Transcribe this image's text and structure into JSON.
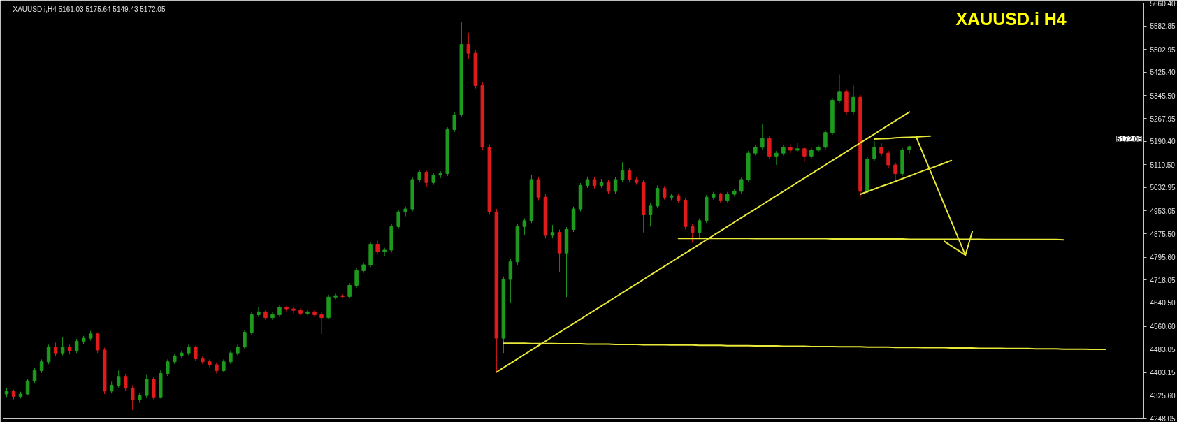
{
  "chart_data": {
    "type": "candlestick",
    "title": "XAUUSD.i      H4",
    "annotations": [
      "XAUUSD.i,H4  5161.03 5175.64 5149.43 5172.05",
      "5172.05"
    ],
    "categories": [
      null,
      null,
      null,
      null,
      null,
      null,
      null,
      null,
      null,
      null,
      null,
      null,
      null,
      null,
      null,
      null,
      null,
      null,
      null,
      null,
      null,
      null,
      null,
      null,
      null,
      null,
      null,
      null,
      null,
      null,
      null,
      null,
      null,
      null,
      null,
      null,
      null,
      null,
      null,
      null,
      null,
      null,
      null,
      null,
      null,
      null,
      null,
      null,
      null,
      null,
      null,
      null,
      null,
      null,
      null,
      null,
      null,
      null,
      null,
      null,
      null,
      null,
      null,
      null,
      null,
      null,
      null,
      null,
      null,
      null,
      null,
      null,
      null,
      null,
      null,
      null,
      null,
      null,
      null,
      null,
      null,
      null,
      null,
      null,
      null,
      null,
      null,
      null,
      null,
      null,
      null,
      null,
      null,
      null,
      null,
      null,
      null,
      null,
      null,
      null,
      null,
      null,
      null,
      null,
      null,
      null,
      null,
      null,
      null,
      null,
      null,
      null,
      null,
      null,
      null,
      null,
      null,
      null,
      null,
      null,
      null,
      null,
      null,
      null,
      null,
      null,
      null,
      null,
      null,
      null,
      null,
      null,
      null,
      null,
      null,
      null,
      null,
      null,
      null,
      null,
      null,
      null,
      null,
      null,
      null,
      null,
      null,
      null,
      null,
      null,
      null,
      null,
      null,
      null,
      null,
      null,
      null,
      null,
      null,
      null,
      null,
      null,
      null
    ],
    "ohlc": [
      [
        4330,
        4350,
        4320,
        4339
      ],
      [
        4339,
        4345,
        4312,
        4322
      ],
      [
        4322,
        4338,
        4315,
        4330
      ],
      [
        4330,
        4382,
        4325,
        4375
      ],
      [
        4375,
        4418,
        4368,
        4410
      ],
      [
        4410,
        4448,
        4402,
        4440
      ],
      [
        4440,
        4498,
        4432,
        4490
      ],
      [
        4490,
        4505,
        4460,
        4470
      ],
      [
        4470,
        4525,
        4462,
        4490
      ],
      [
        4490,
        4498,
        4465,
        4478
      ],
      [
        4478,
        4518,
        4470,
        4510
      ],
      [
        4510,
        4528,
        4500,
        4520
      ],
      [
        4520,
        4545,
        4512,
        4535
      ],
      [
        4535,
        4540,
        4470,
        4480
      ],
      [
        4480,
        4488,
        4330,
        4340
      ],
      [
        4340,
        4372,
        4332,
        4360
      ],
      [
        4360,
        4410,
        4352,
        4390
      ],
      [
        4390,
        4398,
        4340,
        4350
      ],
      [
        4350,
        4360,
        4275,
        4310
      ],
      [
        4310,
        4335,
        4300,
        4325
      ],
      [
        4325,
        4395,
        4318,
        4380
      ],
      [
        4380,
        4388,
        4312,
        4320
      ],
      [
        4320,
        4410,
        4315,
        4400
      ],
      [
        4400,
        4448,
        4392,
        4440
      ],
      [
        4440,
        4468,
        4432,
        4460
      ],
      [
        4460,
        4478,
        4452,
        4470
      ],
      [
        4470,
        4498,
        4462,
        4490
      ],
      [
        4490,
        4495,
        4442,
        4450
      ],
      [
        4450,
        4460,
        4432,
        4440
      ],
      [
        4440,
        4448,
        4422,
        4430
      ],
      [
        4430,
        4438,
        4400,
        4410
      ],
      [
        4410,
        4448,
        4405,
        4440
      ],
      [
        4440,
        4478,
        4432,
        4470
      ],
      [
        4470,
        4498,
        4462,
        4490
      ],
      [
        4490,
        4548,
        4485,
        4540
      ],
      [
        4540,
        4608,
        4532,
        4600
      ],
      [
        4600,
        4625,
        4592,
        4610
      ],
      [
        4610,
        4618,
        4582,
        4590
      ],
      [
        4590,
        4610,
        4582,
        4600
      ],
      [
        4600,
        4632,
        4592,
        4625
      ],
      [
        4625,
        4630,
        4610,
        4620
      ],
      [
        4620,
        4628,
        4605,
        4615
      ],
      [
        4615,
        4622,
        4598,
        4605
      ],
      [
        4605,
        4618,
        4598,
        4610
      ],
      [
        4610,
        4615,
        4592,
        4600
      ],
      [
        4600,
        4608,
        4535,
        4590
      ],
      [
        4590,
        4668,
        4585,
        4660
      ],
      [
        4660,
        4672,
        4652,
        4665
      ],
      [
        4665,
        4670,
        4655,
        4662
      ],
      [
        4662,
        4708,
        4655,
        4700
      ],
      [
        4700,
        4758,
        4692,
        4750
      ],
      [
        4750,
        4778,
        4742,
        4770
      ],
      [
        4770,
        4848,
        4762,
        4840
      ],
      [
        4840,
        4852,
        4805,
        4815
      ],
      [
        4815,
        4828,
        4800,
        4820
      ],
      [
        4820,
        4908,
        4812,
        4900
      ],
      [
        4900,
        4958,
        4892,
        4950
      ],
      [
        4950,
        4968,
        4935,
        4960
      ],
      [
        4960,
        5068,
        4952,
        5060
      ],
      [
        5060,
        5092,
        5050,
        5085
      ],
      [
        5085,
        5090,
        5035,
        5050
      ],
      [
        5050,
        5082,
        5042,
        5075
      ],
      [
        5075,
        5088,
        5065,
        5080
      ],
      [
        5080,
        5238,
        5072,
        5230
      ],
      [
        5230,
        5288,
        5222,
        5280
      ],
      [
        5280,
        5596,
        5272,
        5520
      ],
      [
        5520,
        5560,
        5470,
        5490
      ],
      [
        5490,
        5500,
        5370,
        5380
      ],
      [
        5380,
        5392,
        5160,
        5170
      ],
      [
        5170,
        5180,
        4940,
        4950
      ],
      [
        4950,
        4960,
        4403,
        4520
      ],
      [
        4520,
        4730,
        4470,
        4720
      ],
      [
        4720,
        4790,
        4640,
        4780
      ],
      [
        4780,
        4908,
        4770,
        4900
      ],
      [
        4900,
        4928,
        4870,
        4920
      ],
      [
        4920,
        5075,
        4912,
        5060
      ],
      [
        5060,
        5070,
        4990,
        5000
      ],
      [
        5000,
        5010,
        4860,
        4870
      ],
      [
        4870,
        4905,
        4860,
        4880
      ],
      [
        4880,
        4890,
        4745,
        4810
      ],
      [
        4810,
        4898,
        4660,
        4890
      ],
      [
        4890,
        4968,
        4882,
        4960
      ],
      [
        4960,
        5048,
        4952,
        5040
      ],
      [
        5040,
        5070,
        5032,
        5060
      ],
      [
        5060,
        5068,
        5030,
        5040
      ],
      [
        5040,
        5062,
        5032,
        5050
      ],
      [
        5050,
        5058,
        5010,
        5020
      ],
      [
        5020,
        5068,
        5012,
        5060
      ],
      [
        5060,
        5119,
        5052,
        5090
      ],
      [
        5090,
        5098,
        5052,
        5060
      ],
      [
        5060,
        5070,
        5042,
        5050
      ],
      [
        5050,
        5058,
        4880,
        4940
      ],
      [
        4940,
        4980,
        4900,
        4970
      ],
      [
        4970,
        5040,
        4962,
        5030
      ],
      [
        5030,
        5038,
        4992,
        5000
      ],
      [
        5000,
        5012,
        4990,
        5005
      ],
      [
        5005,
        5012,
        4982,
        4990
      ],
      [
        4990,
        4998,
        4890,
        4900
      ],
      [
        4900,
        4910,
        4845,
        4880
      ],
      [
        4880,
        4928,
        4862,
        4920
      ],
      [
        4920,
        5008,
        4912,
        5000
      ],
      [
        5000,
        5018,
        4992,
        5010
      ],
      [
        5010,
        5015,
        4982,
        4990
      ],
      [
        4990,
        5018,
        4982,
        5010
      ],
      [
        5010,
        5028,
        5002,
        5020
      ],
      [
        5020,
        5068,
        5012,
        5060
      ],
      [
        5060,
        5158,
        5052,
        5150
      ],
      [
        5150,
        5178,
        5142,
        5170
      ],
      [
        5170,
        5248,
        5162,
        5200
      ],
      [
        5200,
        5208,
        5130,
        5140
      ],
      [
        5140,
        5158,
        5110,
        5150
      ],
      [
        5150,
        5178,
        5142,
        5170
      ],
      [
        5170,
        5180,
        5150,
        5160
      ],
      [
        5160,
        5185,
        5152,
        5165
      ],
      [
        5165,
        5170,
        5120,
        5140
      ],
      [
        5140,
        5168,
        5132,
        5160
      ],
      [
        5160,
        5178,
        5152,
        5170
      ],
      [
        5170,
        5228,
        5162,
        5220
      ],
      [
        5220,
        5338,
        5212,
        5330
      ],
      [
        5330,
        5418,
        5322,
        5360
      ],
      [
        5360,
        5368,
        5280,
        5290
      ],
      [
        5290,
        5380,
        5282,
        5340
      ],
      [
        5340,
        5348,
        5000,
        5020
      ],
      [
        5020,
        5138,
        5012,
        5130
      ],
      [
        5130,
        5190,
        5122,
        5170
      ],
      [
        5170,
        5185,
        5140,
        5150
      ],
      [
        5150,
        5158,
        5100,
        5110
      ],
      [
        5110,
        5118,
        5060,
        5080
      ],
      [
        5080,
        5168,
        5072,
        5161.03
      ],
      [
        5161.03,
        5175.64,
        5149.43,
        5172.05
      ],
      null,
      null,
      null,
      null,
      null,
      null,
      null,
      null,
      null,
      null,
      null,
      null,
      null,
      null,
      null,
      null,
      null,
      null,
      null,
      null,
      null,
      null,
      null,
      null,
      null,
      null,
      null,
      null,
      null,
      null,
      null,
      null,
      null
    ],
    "series": [
      {
        "type": "line",
        "color": "#e8e838",
        "values": [
          null,
          null,
          null,
          null,
          null,
          null,
          null,
          null,
          null,
          null,
          null,
          null,
          null,
          null,
          null,
          null,
          null,
          null,
          null,
          null,
          null,
          null,
          null,
          null,
          null,
          null,
          null,
          null,
          null,
          null,
          null,
          null,
          null,
          null,
          null,
          null,
          null,
          null,
          null,
          null,
          null,
          null,
          null,
          null,
          null,
          null,
          null,
          null,
          null,
          null,
          null,
          null,
          null,
          null,
          null,
          null,
          null,
          null,
          null,
          null,
          null,
          null,
          null,
          null,
          null,
          null,
          null,
          null,
          null,
          null,
          4405,
          4420,
          4435,
          4450,
          4465,
          4480,
          4495,
          4510,
          4525,
          4540,
          4555,
          4570,
          4585,
          4600,
          4615,
          4630,
          4645,
          4660,
          4675,
          4690,
          4705,
          4720,
          4735,
          4750,
          4765,
          4780,
          4795,
          4810,
          4825,
          4840,
          4855,
          4870,
          4885,
          4900,
          4915,
          4930,
          4945,
          4960,
          4975,
          4990,
          5005,
          5020,
          5035,
          5050,
          5065,
          5080,
          5095,
          5110,
          5125,
          5140,
          5155,
          5170,
          5185,
          5200,
          5215,
          5230,
          5245,
          5260,
          5275,
          5290,
          null,
          null,
          null,
          null,
          null,
          null,
          null,
          null,
          null,
          null,
          null,
          null,
          null,
          null,
          null,
          null,
          null,
          null,
          null,
          null,
          null,
          null,
          null,
          null,
          null,
          null,
          null,
          null,
          null,
          null,
          null,
          null,
          null
        ]
      },
      {
        "type": "line",
        "color": "#e8e838",
        "values": [
          null,
          null,
          null,
          null,
          null,
          null,
          null,
          null,
          null,
          null,
          null,
          null,
          null,
          null,
          null,
          null,
          null,
          null,
          null,
          null,
          null,
          null,
          null,
          null,
          null,
          null,
          null,
          null,
          null,
          null,
          null,
          null,
          null,
          null,
          null,
          null,
          null,
          null,
          null,
          null,
          null,
          null,
          null,
          null,
          null,
          null,
          null,
          null,
          null,
          null,
          null,
          null,
          null,
          null,
          null,
          null,
          null,
          null,
          null,
          null,
          null,
          null,
          null,
          null,
          null,
          null,
          null,
          null,
          null,
          null,
          null,
          4503,
          4503,
          4503,
          4503,
          4502,
          4502,
          4502,
          4502,
          4501,
          4501,
          4501,
          4501,
          4500,
          4500,
          4500,
          4500,
          4499,
          4499,
          4499,
          4499,
          4498,
          4498,
          4498,
          4498,
          4497,
          4497,
          4497,
          4497,
          4496,
          4496,
          4496,
          4496,
          4495,
          4495,
          4495,
          4495,
          4494,
          4494,
          4494,
          4494,
          4493,
          4493,
          4493,
          4493,
          4492,
          4492,
          4492,
          4492,
          4491,
          4491,
          4491,
          4491,
          4490,
          4490,
          4490,
          4490,
          4489,
          4489,
          4489,
          4489,
          4488,
          4488,
          4488,
          4488,
          4487,
          4487,
          4487,
          4487,
          4486,
          4486,
          4486,
          4486,
          4485,
          4485,
          4485,
          4485,
          4484,
          4484,
          4484,
          4484,
          4483,
          4483,
          4483,
          4483,
          4482,
          4482,
          4482,
          null,
          null,
          null,
          null,
          null
        ]
      },
      {
        "type": "line",
        "color": "#e8e838",
        "values": [
          null,
          null,
          null,
          null,
          null,
          null,
          null,
          null,
          null,
          null,
          null,
          null,
          null,
          null,
          null,
          null,
          null,
          null,
          null,
          null,
          null,
          null,
          null,
          null,
          null,
          null,
          null,
          null,
          null,
          null,
          null,
          null,
          null,
          null,
          null,
          null,
          null,
          null,
          null,
          null,
          null,
          null,
          null,
          null,
          null,
          null,
          null,
          null,
          null,
          null,
          null,
          null,
          null,
          null,
          null,
          null,
          null,
          null,
          null,
          null,
          null,
          null,
          null,
          null,
          null,
          null,
          null,
          null,
          null,
          null,
          null,
          null,
          null,
          null,
          null,
          null,
          null,
          null,
          null,
          null,
          null,
          null,
          null,
          null,
          null,
          null,
          null,
          null,
          null,
          null,
          null,
          null,
          null,
          null,
          null,
          null,
          4860,
          4860,
          4860,
          4860,
          4860,
          4860,
          4860,
          4860,
          4860,
          4860,
          4860,
          4859,
          4859,
          4859,
          4859,
          4859,
          4859,
          4859,
          4859,
          4859,
          4859,
          4859,
          4858,
          4858,
          4858,
          4858,
          4858,
          4858,
          4858,
          4858,
          4858,
          4858,
          4858,
          4857,
          4857,
          4857,
          4857,
          4857,
          4857,
          4857,
          4857,
          4857,
          4857,
          4857,
          4856,
          4856,
          4856,
          4856,
          4856,
          4856,
          4856,
          4856,
          4856,
          4856,
          4856,
          4855,
          null,
          null,
          null,
          null,
          null,
          null,
          null,
          null,
          null,
          null,
          null
        ]
      },
      {
        "type": "line",
        "color": "#e8e838",
        "values": [
          null,
          null,
          null,
          null,
          null,
          null,
          null,
          null,
          null,
          null,
          null,
          null,
          null,
          null,
          null,
          null,
          null,
          null,
          null,
          null,
          null,
          null,
          null,
          null,
          null,
          null,
          null,
          null,
          null,
          null,
          null,
          null,
          null,
          null,
          null,
          null,
          null,
          null,
          null,
          null,
          null,
          null,
          null,
          null,
          null,
          null,
          null,
          null,
          null,
          null,
          null,
          null,
          null,
          null,
          null,
          null,
          null,
          null,
          null,
          null,
          null,
          null,
          null,
          null,
          null,
          null,
          null,
          null,
          null,
          null,
          null,
          null,
          null,
          null,
          null,
          null,
          null,
          null,
          null,
          null,
          null,
          null,
          null,
          null,
          null,
          null,
          null,
          null,
          null,
          null,
          null,
          null,
          null,
          null,
          null,
          null,
          null,
          null,
          null,
          null,
          null,
          null,
          null,
          null,
          null,
          null,
          null,
          null,
          null,
          null,
          null,
          null,
          null,
          null,
          null,
          null,
          null,
          null,
          null,
          null,
          null,
          null,
          null,
          null,
          5198,
          5199,
          5200,
          5202,
          5203,
          5204,
          5205,
          5207,
          5208,
          null,
          null,
          null,
          null,
          null,
          null,
          null,
          null,
          null,
          null,
          null,
          null,
          null,
          null,
          null,
          null,
          null,
          null,
          null,
          null,
          null,
          null,
          null,
          null,
          null,
          null,
          null,
          null,
          null,
          null
        ]
      },
      {
        "type": "line",
        "color": "#e8e838",
        "values": [
          null,
          null,
          null,
          null,
          null,
          null,
          null,
          null,
          null,
          null,
          null,
          null,
          null,
          null,
          null,
          null,
          null,
          null,
          null,
          null,
          null,
          null,
          null,
          null,
          null,
          null,
          null,
          null,
          null,
          null,
          null,
          null,
          null,
          null,
          null,
          null,
          null,
          null,
          null,
          null,
          null,
          null,
          null,
          null,
          null,
          null,
          null,
          null,
          null,
          null,
          null,
          null,
          null,
          null,
          null,
          null,
          null,
          null,
          null,
          null,
          null,
          null,
          null,
          null,
          null,
          null,
          null,
          null,
          null,
          null,
          null,
          null,
          null,
          null,
          null,
          null,
          null,
          null,
          null,
          null,
          null,
          null,
          null,
          null,
          null,
          null,
          null,
          null,
          null,
          null,
          null,
          null,
          null,
          null,
          null,
          null,
          null,
          null,
          null,
          null,
          null,
          null,
          null,
          null,
          null,
          null,
          null,
          null,
          null,
          null,
          null,
          null,
          null,
          null,
          null,
          null,
          null,
          null,
          null,
          null,
          null,
          null,
          5010,
          5019,
          5028,
          5037,
          5045,
          5054,
          5063,
          5072,
          5081,
          5090,
          5098,
          5107,
          5116,
          5125,
          null,
          null,
          null,
          null,
          null,
          null,
          null,
          null,
          null,
          null,
          null,
          null,
          null,
          null,
          null,
          null,
          null,
          null,
          null,
          null,
          null,
          null,
          null,
          null,
          null,
          null,
          null
        ]
      },
      {
        "type": "line",
        "color": "#e8e838",
        "values": [
          null,
          null,
          null,
          null,
          null,
          null,
          null,
          null,
          null,
          null,
          null,
          null,
          null,
          null,
          null,
          null,
          null,
          null,
          null,
          null,
          null,
          null,
          null,
          null,
          null,
          null,
          null,
          null,
          null,
          null,
          null,
          null,
          null,
          null,
          null,
          null,
          null,
          null,
          null,
          null,
          null,
          null,
          null,
          null,
          null,
          null,
          null,
          null,
          null,
          null,
          null,
          null,
          null,
          null,
          null,
          null,
          null,
          null,
          null,
          null,
          null,
          null,
          null,
          null,
          null,
          null,
          null,
          null,
          null,
          null,
          null,
          null,
          null,
          null,
          null,
          null,
          null,
          null,
          null,
          null,
          null,
          null,
          null,
          null,
          null,
          null,
          null,
          null,
          null,
          null,
          null,
          null,
          null,
          null,
          null,
          null,
          null,
          null,
          null,
          null,
          null,
          null,
          null,
          null,
          null,
          null,
          null,
          null,
          null,
          null,
          null,
          null,
          null,
          null,
          null,
          null,
          null,
          null,
          null,
          null,
          null,
          null,
          null,
          null,
          null,
          null,
          null,
          null,
          null,
          null,
          5203,
          5146,
          5089,
          5032,
          4974,
          4917,
          4860,
          4803,
          null,
          null,
          null,
          null,
          null,
          null,
          null,
          null,
          null,
          null,
          null,
          null,
          null,
          null,
          null,
          null,
          null,
          null,
          null,
          null,
          null,
          null,
          null,
          null,
          null
        ]
      },
      {
        "type": "line",
        "color": "#e8e838",
        "values": [
          null,
          null,
          null,
          null,
          null,
          null,
          null,
          null,
          null,
          null,
          null,
          null,
          null,
          null,
          null,
          null,
          null,
          null,
          null,
          null,
          null,
          null,
          null,
          null,
          null,
          null,
          null,
          null,
          null,
          null,
          null,
          null,
          null,
          null,
          null,
          null,
          null,
          null,
          null,
          null,
          null,
          null,
          null,
          null,
          null,
          null,
          null,
          null,
          null,
          null,
          null,
          null,
          null,
          null,
          null,
          null,
          null,
          null,
          null,
          null,
          null,
          null,
          null,
          null,
          null,
          null,
          null,
          null,
          null,
          null,
          null,
          null,
          null,
          null,
          null,
          null,
          null,
          null,
          null,
          null,
          null,
          null,
          null,
          null,
          null,
          null,
          null,
          null,
          null,
          null,
          null,
          null,
          null,
          null,
          null,
          null,
          null,
          null,
          null,
          null,
          null,
          null,
          null,
          null,
          null,
          null,
          null,
          null,
          null,
          null,
          null,
          null,
          null,
          null,
          null,
          null,
          null,
          null,
          null,
          null,
          null,
          null,
          null,
          null,
          null,
          null,
          null,
          null,
          null,
          null,
          null,
          null,
          null,
          null,
          4850,
          4834,
          4819,
          4803,
          4884,
          null,
          null,
          null,
          null,
          null,
          null,
          null,
          null,
          null,
          null,
          null,
          null,
          null,
          null,
          null,
          null,
          null,
          null,
          null,
          null,
          null,
          null,
          null,
          null
        ]
      }
    ],
    "ylim": [
      4248.05,
      5660.4
    ],
    "yticks": [
      {
        "value": 5660.4,
        "label": "5660.40"
      },
      5582.85,
      5502.95,
      {
        "value": 5425.4,
        "label": "5425.40"
      },
      {
        "value": 5345.5,
        "label": "5345.50"
      },
      5267.95,
      {
        "value": 5190.4,
        "label": "5190.40"
      },
      {
        "value": 5110.5,
        "label": "5110.50"
      },
      5032.95,
      4953.05,
      {
        "value": 4875.5,
        "label": "4875.50"
      },
      {
        "value": 4795.6,
        "label": "4795.60"
      },
      4718.05,
      {
        "value": 4640.5,
        "label": "4640.50"
      },
      {
        "value": 4560.6,
        "label": "4560.60"
      },
      4483.05,
      4403.15,
      {
        "value": 4325.6,
        "label": "4325.60"
      },
      4248.05
    ],
    "tick_labels": "y",
    "grid": false
  }
}
